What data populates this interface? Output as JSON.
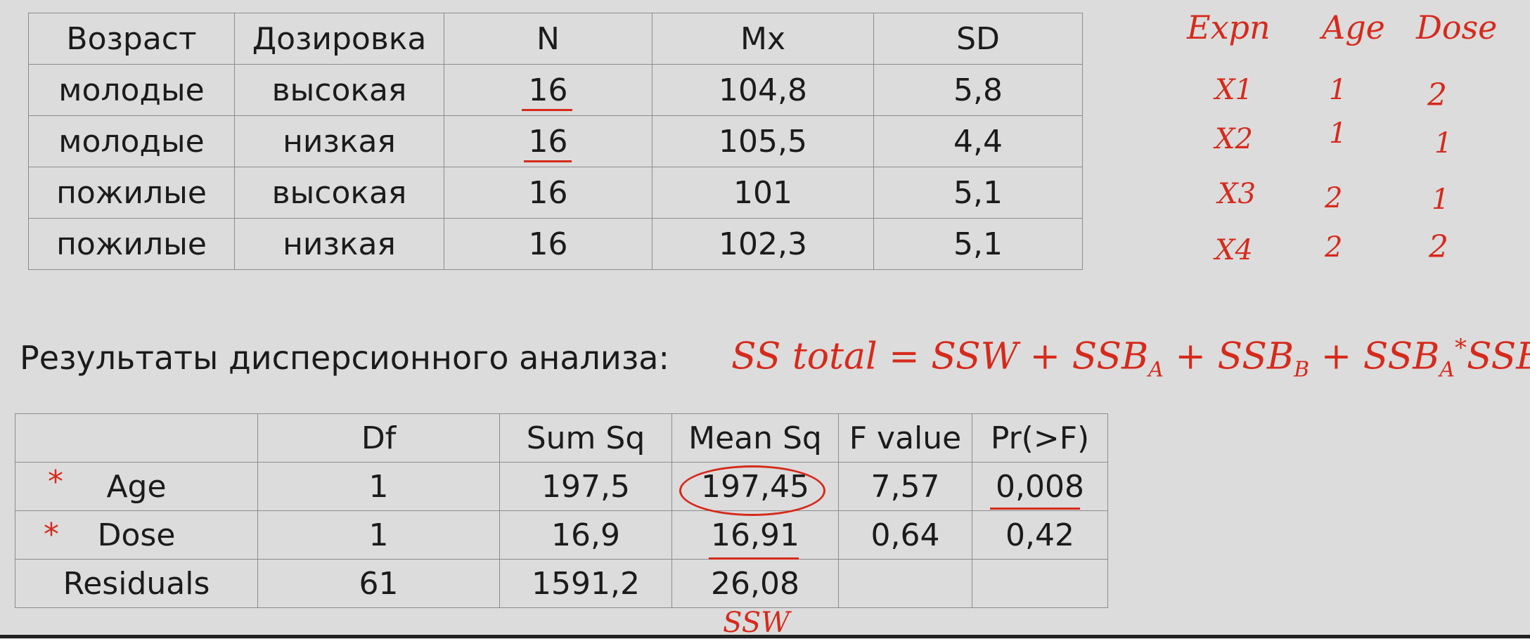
{
  "table1": {
    "headers": [
      "Возраст",
      "Дозировка",
      "N",
      "Mx",
      "SD"
    ],
    "rows": [
      [
        "молодые",
        "высокая",
        "16",
        "104,8",
        "5,8"
      ],
      [
        "молодые",
        "низкая",
        "16",
        "105,5",
        "4,4"
      ],
      [
        "пожилые",
        "высокая",
        "16",
        "101",
        "5,1"
      ],
      [
        "пожилые",
        "низкая",
        "16",
        "102,3",
        "5,1"
      ]
    ]
  },
  "caption": "Результаты дисперсионного анализа:",
  "table2": {
    "headers": [
      "",
      "Df",
      "Sum Sq",
      "Mean Sq",
      "F value",
      "Pr(>F)"
    ],
    "rows": [
      [
        "Age",
        "1",
        "197,5",
        "197,45",
        "7,57",
        "0,008"
      ],
      [
        "Dose",
        "1",
        "16,9",
        "16,91",
        "0,64",
        "0,42"
      ],
      [
        "Residuals",
        "61",
        "1591,2",
        "26,08",
        "",
        ""
      ]
    ]
  },
  "annotations": {
    "color": "#d62a1c",
    "coding_table": {
      "headers": [
        "Expn",
        "Age",
        "Dose"
      ],
      "rows": [
        [
          "X1",
          "1",
          "2"
        ],
        [
          "X2",
          "1",
          "1"
        ],
        [
          "X3",
          "2",
          "1"
        ],
        [
          "X4",
          "2",
          "2"
        ]
      ]
    },
    "formula": {
      "lhs": "SS total",
      "eq": "=",
      "ssw": "SSW",
      "plus": "+",
      "ssb": "SSB",
      "sub_a": "A",
      "sub_b": "B",
      "star": "*"
    },
    "star_mark": "*",
    "ssw_label": "SSW"
  }
}
